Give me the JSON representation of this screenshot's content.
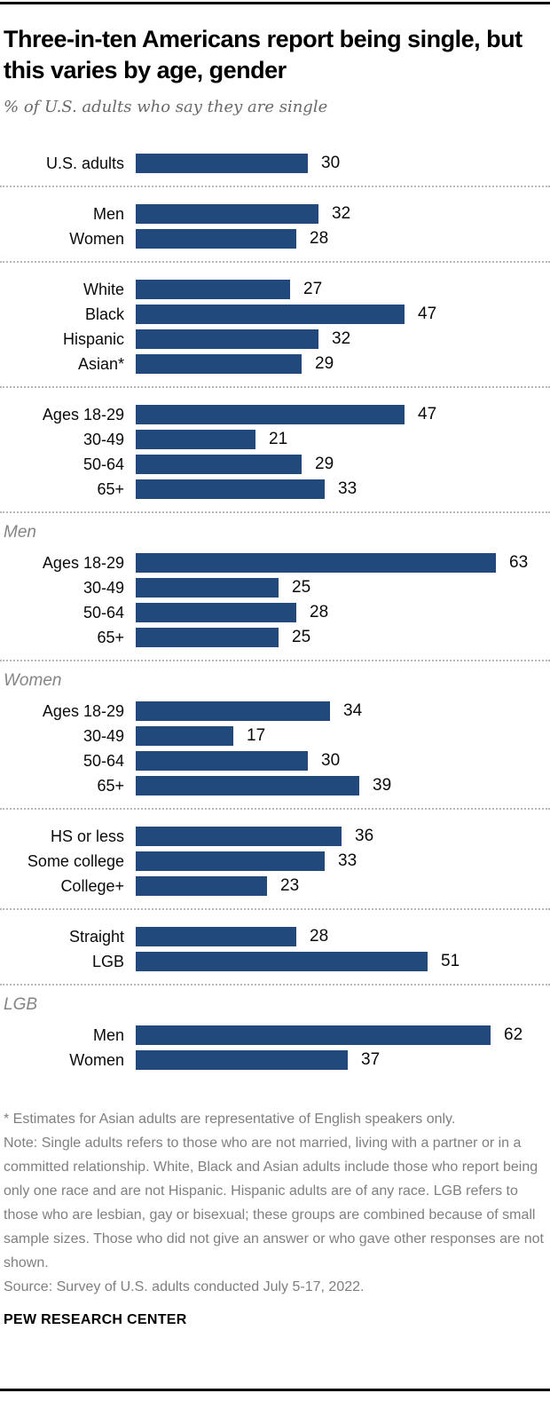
{
  "chart_data": {
    "type": "bar",
    "title": "Three-in-ten Americans report being single, but this varies by age, gender",
    "subtitle": "% of U.S. adults who say they are single",
    "bar_color": "#21497B",
    "value_suffix": "%",
    "xlim": [
      0,
      65
    ],
    "grid": false,
    "legend": "none",
    "value_labels": "end-of-bar",
    "sections": [
      {
        "header": null,
        "rows": [
          {
            "label": "U.S. adults",
            "value": 30
          }
        ]
      },
      {
        "header": null,
        "rows": [
          {
            "label": "Men",
            "value": 32
          },
          {
            "label": "Women",
            "value": 28
          }
        ]
      },
      {
        "header": null,
        "rows": [
          {
            "label": "White",
            "value": 27
          },
          {
            "label": "Black",
            "value": 47
          },
          {
            "label": "Hispanic",
            "value": 32
          },
          {
            "label": "Asian*",
            "value": 29
          }
        ]
      },
      {
        "header": null,
        "rows": [
          {
            "label": "Ages 18-29",
            "value": 47
          },
          {
            "label": "30-49",
            "value": 21
          },
          {
            "label": "50-64",
            "value": 29
          },
          {
            "label": "65+",
            "value": 33
          }
        ]
      },
      {
        "header": "Men",
        "rows": [
          {
            "label": "Ages 18-29",
            "value": 63
          },
          {
            "label": "30-49",
            "value": 25
          },
          {
            "label": "50-64",
            "value": 28
          },
          {
            "label": "65+",
            "value": 25
          }
        ]
      },
      {
        "header": "Women",
        "rows": [
          {
            "label": "Ages 18-29",
            "value": 34
          },
          {
            "label": "30-49",
            "value": 17
          },
          {
            "label": "50-64",
            "value": 30
          },
          {
            "label": "65+",
            "value": 39
          }
        ]
      },
      {
        "header": null,
        "rows": [
          {
            "label": "HS or less",
            "value": 36
          },
          {
            "label": "Some college",
            "value": 33
          },
          {
            "label": "College+",
            "value": 23
          }
        ]
      },
      {
        "header": null,
        "rows": [
          {
            "label": "Straight",
            "value": 28
          },
          {
            "label": "LGB",
            "value": 51
          }
        ]
      },
      {
        "header": "LGB",
        "rows": [
          {
            "label": "Men",
            "value": 62
          },
          {
            "label": "Women",
            "value": 37
          }
        ]
      }
    ],
    "notes": {
      "asterisk": "* Estimates for Asian adults are representative of English speakers only.",
      "main": "Note: Single adults refers to those who are not married, living with a partner or in a committed relationship. White, Black and Asian adults include those who report being only one race and are not Hispanic. Hispanic adults are of any race. LGB refers to those who are lesbian, gay or bisexual; these groups are combined because of small sample sizes. Those who did not give an answer or who gave other responses are not shown.",
      "source": "Source: Survey of U.S. adults conducted July 5-17, 2022."
    },
    "footer": "PEW RESEARCH CENTER"
  }
}
